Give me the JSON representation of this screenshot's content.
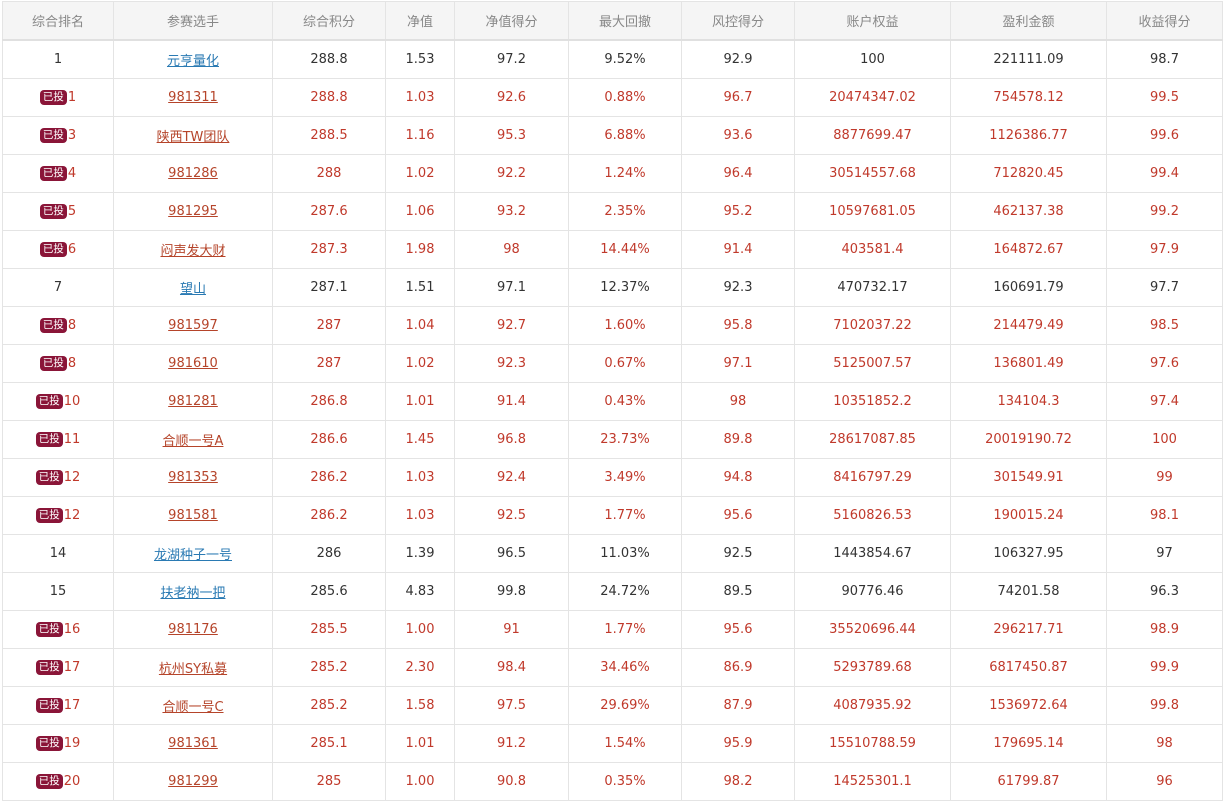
{
  "colors": {
    "header_bg": "#f5f5f5",
    "header_text": "#888888",
    "normal_text": "#333333",
    "normal_link": "#2a7ab3",
    "invested_text": "#c0392b",
    "invested_link": "#b5442a",
    "badge_bg": "#8a1538",
    "border": "#e4e4e4"
  },
  "table": {
    "headers": [
      "综合排名",
      "参赛选手",
      "综合积分",
      "净值",
      "净值得分",
      "最大回撤",
      "风控得分",
      "账户权益",
      "盈利金额",
      "收益得分"
    ],
    "badge_label": "已投",
    "rows": [
      {
        "invested": false,
        "rank": "1",
        "player": "元亨量化",
        "score": "288.8",
        "nav": "1.53",
        "nav_score": "97.2",
        "max_dd": "9.52%",
        "risk_score": "92.9",
        "equity": "100",
        "profit": "221111.09",
        "return_score": "98.7"
      },
      {
        "invested": true,
        "rank": "1",
        "player": "981311",
        "score": "288.8",
        "nav": "1.03",
        "nav_score": "92.6",
        "max_dd": "0.88%",
        "risk_score": "96.7",
        "equity": "20474347.02",
        "profit": "754578.12",
        "return_score": "99.5"
      },
      {
        "invested": true,
        "rank": "3",
        "player": "陕西TW团队",
        "score": "288.5",
        "nav": "1.16",
        "nav_score": "95.3",
        "max_dd": "6.88%",
        "risk_score": "93.6",
        "equity": "8877699.47",
        "profit": "1126386.77",
        "return_score": "99.6"
      },
      {
        "invested": true,
        "rank": "4",
        "player": "981286",
        "score": "288",
        "nav": "1.02",
        "nav_score": "92.2",
        "max_dd": "1.24%",
        "risk_score": "96.4",
        "equity": "30514557.68",
        "profit": "712820.45",
        "return_score": "99.4"
      },
      {
        "invested": true,
        "rank": "5",
        "player": "981295",
        "score": "287.6",
        "nav": "1.06",
        "nav_score": "93.2",
        "max_dd": "2.35%",
        "risk_score": "95.2",
        "equity": "10597681.05",
        "profit": "462137.38",
        "return_score": "99.2"
      },
      {
        "invested": true,
        "rank": "6",
        "player": "闷声发大财",
        "score": "287.3",
        "nav": "1.98",
        "nav_score": "98",
        "max_dd": "14.44%",
        "risk_score": "91.4",
        "equity": "403581.4",
        "profit": "164872.67",
        "return_score": "97.9"
      },
      {
        "invested": false,
        "rank": "7",
        "player": "望山",
        "score": "287.1",
        "nav": "1.51",
        "nav_score": "97.1",
        "max_dd": "12.37%",
        "risk_score": "92.3",
        "equity": "470732.17",
        "profit": "160691.79",
        "return_score": "97.7"
      },
      {
        "invested": true,
        "rank": "8",
        "player": "981597",
        "score": "287",
        "nav": "1.04",
        "nav_score": "92.7",
        "max_dd": "1.60%",
        "risk_score": "95.8",
        "equity": "7102037.22",
        "profit": "214479.49",
        "return_score": "98.5"
      },
      {
        "invested": true,
        "rank": "8",
        "player": "981610",
        "score": "287",
        "nav": "1.02",
        "nav_score": "92.3",
        "max_dd": "0.67%",
        "risk_score": "97.1",
        "equity": "5125007.57",
        "profit": "136801.49",
        "return_score": "97.6"
      },
      {
        "invested": true,
        "rank": "10",
        "player": "981281",
        "score": "286.8",
        "nav": "1.01",
        "nav_score": "91.4",
        "max_dd": "0.43%",
        "risk_score": "98",
        "equity": "10351852.2",
        "profit": "134104.3",
        "return_score": "97.4"
      },
      {
        "invested": true,
        "rank": "11",
        "player": "合顺一号A",
        "score": "286.6",
        "nav": "1.45",
        "nav_score": "96.8",
        "max_dd": "23.73%",
        "risk_score": "89.8",
        "equity": "28617087.85",
        "profit": "20019190.72",
        "return_score": "100"
      },
      {
        "invested": true,
        "rank": "12",
        "player": "981353",
        "score": "286.2",
        "nav": "1.03",
        "nav_score": "92.4",
        "max_dd": "3.49%",
        "risk_score": "94.8",
        "equity": "8416797.29",
        "profit": "301549.91",
        "return_score": "99"
      },
      {
        "invested": true,
        "rank": "12",
        "player": "981581",
        "score": "286.2",
        "nav": "1.03",
        "nav_score": "92.5",
        "max_dd": "1.77%",
        "risk_score": "95.6",
        "equity": "5160826.53",
        "profit": "190015.24",
        "return_score": "98.1"
      },
      {
        "invested": false,
        "rank": "14",
        "player": "龙湖种子一号",
        "score": "286",
        "nav": "1.39",
        "nav_score": "96.5",
        "max_dd": "11.03%",
        "risk_score": "92.5",
        "equity": "1443854.67",
        "profit": "106327.95",
        "return_score": "97"
      },
      {
        "invested": false,
        "rank": "15",
        "player": "扶老衲一把",
        "score": "285.6",
        "nav": "4.83",
        "nav_score": "99.8",
        "max_dd": "24.72%",
        "risk_score": "89.5",
        "equity": "90776.46",
        "profit": "74201.58",
        "return_score": "96.3"
      },
      {
        "invested": true,
        "rank": "16",
        "player": "981176",
        "score": "285.5",
        "nav": "1.00",
        "nav_score": "91",
        "max_dd": "1.77%",
        "risk_score": "95.6",
        "equity": "35520696.44",
        "profit": "296217.71",
        "return_score": "98.9"
      },
      {
        "invested": true,
        "rank": "17",
        "player": "杭州SY私募",
        "score": "285.2",
        "nav": "2.30",
        "nav_score": "98.4",
        "max_dd": "34.46%",
        "risk_score": "86.9",
        "equity": "5293789.68",
        "profit": "6817450.87",
        "return_score": "99.9"
      },
      {
        "invested": true,
        "rank": "17",
        "player": "合顺一号C",
        "score": "285.2",
        "nav": "1.58",
        "nav_score": "97.5",
        "max_dd": "29.69%",
        "risk_score": "87.9",
        "equity": "4087935.92",
        "profit": "1536972.64",
        "return_score": "99.8"
      },
      {
        "invested": true,
        "rank": "19",
        "player": "981361",
        "score": "285.1",
        "nav": "1.01",
        "nav_score": "91.2",
        "max_dd": "1.54%",
        "risk_score": "95.9",
        "equity": "15510788.59",
        "profit": "179695.14",
        "return_score": "98"
      },
      {
        "invested": true,
        "rank": "20",
        "player": "981299",
        "score": "285",
        "nav": "1.00",
        "nav_score": "90.8",
        "max_dd": "0.35%",
        "risk_score": "98.2",
        "equity": "14525301.1",
        "profit": "61799.87",
        "return_score": "96"
      }
    ]
  }
}
